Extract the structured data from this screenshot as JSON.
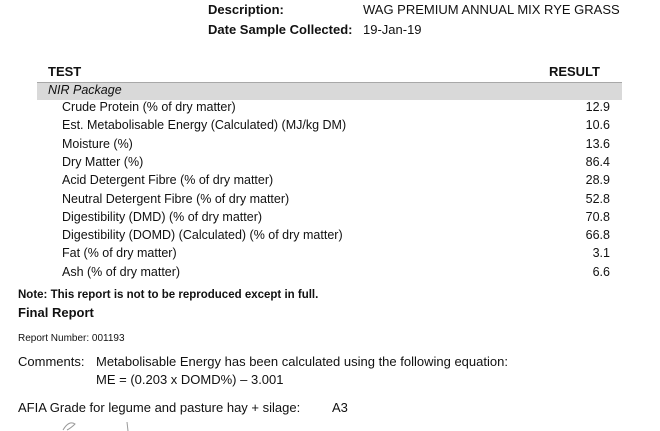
{
  "header": {
    "description_label": "Description:",
    "description_value": "WAG PREMIUM ANNUAL MIX RYE GRASS",
    "date_label": "Date Sample Collected:",
    "date_value": "19-Jan-19"
  },
  "table": {
    "col_test": "TEST",
    "col_result": "RESULT",
    "package": "NIR Package",
    "rows": [
      {
        "test": "Crude Protein (% of dry matter)",
        "result": "12.9"
      },
      {
        "test": "Est. Metabolisable Energy (Calculated) (MJ/kg DM)",
        "result": "10.6"
      },
      {
        "test": "Moisture (%)",
        "result": "13.6"
      },
      {
        "test": "Dry Matter (%)",
        "result": "86.4"
      },
      {
        "test": "Acid Detergent Fibre (% of dry matter)",
        "result": "28.9"
      },
      {
        "test": "Neutral Detergent Fibre (% of dry matter)",
        "result": "52.8"
      },
      {
        "test": "Digestibility (DMD) (% of dry matter)",
        "result": "70.8"
      },
      {
        "test": "Digestibility (DOMD) (Calculated) (% of dry matter)",
        "result": "66.8"
      },
      {
        "test": "Fat (% of dry matter)",
        "result": "3.1"
      },
      {
        "test": "Ash (% of dry matter)",
        "result": "6.6"
      }
    ]
  },
  "footer": {
    "note": "Note:  This report is not to be reproduced except in full.",
    "final_report": "Final Report",
    "report_number": "Report Number: 001193",
    "comments_label": "Comments:",
    "comments_text": "Metabolisable Energy has been calculated using the following equation:",
    "equation": "ME = (0.203 x DOMD%) – 3.001",
    "afia_label": "AFIA Grade for legume and pasture hay + silage:",
    "afia_value": "A3"
  }
}
